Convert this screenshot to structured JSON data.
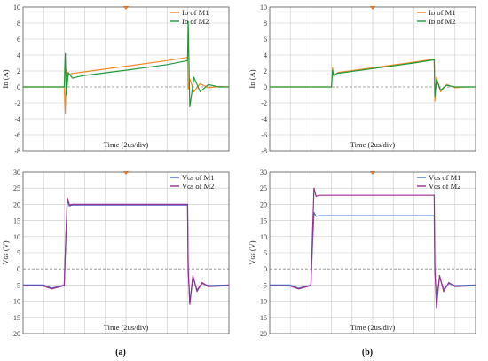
{
  "chart_data": [
    {
      "id": "a-top",
      "type": "line",
      "xlabel": "Time (2us/div)",
      "ylabel": "Iᴅ (A)",
      "ylim": [
        -8,
        10
      ],
      "yticks": [
        -8,
        -6,
        -4,
        -2,
        0,
        2,
        4,
        6,
        8,
        10
      ],
      "xlim": [
        0,
        10
      ],
      "grid": true,
      "legend_position": "top-right",
      "x": [
        0,
        1.5,
        2.0,
        2.05,
        2.1,
        2.2,
        2.4,
        2.7,
        3.0,
        5.0,
        7.0,
        7.99,
        8.02,
        8.1,
        8.3,
        8.6,
        9.0,
        9.5,
        10
      ],
      "series": [
        {
          "name": "Iᴅ of M1",
          "color": "#f08a24",
          "values": [
            0.0,
            0.0,
            0.0,
            -3.3,
            2.2,
            1.5,
            1.7,
            1.8,
            1.9,
            2.6,
            3.3,
            3.7,
            -0.3,
            1.0,
            -0.6,
            0.4,
            -0.1,
            0.05,
            0.0
          ]
        },
        {
          "name": "Iᴅ of M2",
          "color": "#1f9a3a",
          "values": [
            0.0,
            0.0,
            0.0,
            4.2,
            -1.0,
            1.8,
            1.1,
            1.3,
            1.45,
            2.1,
            2.8,
            3.3,
            8.2,
            -2.5,
            1.2,
            -0.6,
            0.3,
            0.0,
            0.0
          ]
        }
      ]
    },
    {
      "id": "b-top",
      "type": "line",
      "xlabel": "Time (2us/div)",
      "ylabel": "Iᴅ (A)",
      "ylim": [
        -8,
        10
      ],
      "yticks": [
        -8,
        -6,
        -4,
        -2,
        0,
        2,
        4,
        6,
        8,
        10
      ],
      "xlim": [
        0,
        10
      ],
      "grid": true,
      "legend_position": "top-right",
      "x": [
        0,
        1.5,
        3.0,
        3.05,
        3.1,
        3.3,
        5.0,
        7.0,
        7.99,
        8.02,
        8.1,
        8.3,
        8.6,
        9.0,
        9.5,
        10
      ],
      "series": [
        {
          "name": "Iᴅ of M1",
          "color": "#f08a24",
          "values": [
            0.0,
            0.0,
            0.0,
            2.4,
            1.4,
            1.8,
            2.4,
            3.1,
            3.5,
            -1.8,
            1.2,
            -0.6,
            0.3,
            -0.1,
            0.0,
            0.0
          ]
        },
        {
          "name": "Iᴅ of M2",
          "color": "#1f9a3a",
          "values": [
            0.0,
            0.0,
            0.0,
            2.1,
            1.5,
            1.7,
            2.3,
            3.0,
            3.4,
            -1.2,
            0.9,
            -0.4,
            0.2,
            0.0,
            0.0,
            0.0
          ]
        }
      ]
    },
    {
      "id": "a-bottom",
      "type": "line",
      "xlabel": "Time (2us/div)",
      "ylabel": "Vɢs (V)",
      "ylim": [
        -20,
        30
      ],
      "yticks": [
        -20,
        -15,
        -10,
        -5,
        0,
        5,
        10,
        15,
        20,
        25,
        30
      ],
      "xlim": [
        0,
        10
      ],
      "grid": true,
      "legend_position": "top-right",
      "x": [
        0,
        1.0,
        1.4,
        2.0,
        2.08,
        2.15,
        2.25,
        2.4,
        5.0,
        7.99,
        8.02,
        8.1,
        8.25,
        8.45,
        8.7,
        9.0,
        10
      ],
      "series": [
        {
          "name": "Vɢs of M1",
          "color": "#4a5fc8",
          "values": [
            -5.0,
            -5.0,
            -6.0,
            -5.0,
            10.0,
            21.5,
            19.5,
            19.8,
            19.8,
            19.8,
            0.0,
            -10.5,
            -2.5,
            -6.5,
            -4.5,
            -5.2,
            -5.0
          ]
        },
        {
          "name": "Vɢs of M2",
          "color": "#9b2f8f",
          "values": [
            -5.2,
            -5.3,
            -6.2,
            -5.2,
            10.5,
            22.0,
            19.8,
            20.0,
            20.0,
            20.0,
            0.0,
            -11.0,
            -2.0,
            -7.0,
            -4.2,
            -5.5,
            -5.2
          ]
        }
      ]
    },
    {
      "id": "b-bottom",
      "type": "line",
      "xlabel": "Time (2us/div)",
      "ylabel": "Vɢs (V)",
      "ylim": [
        -20,
        30
      ],
      "yticks": [
        -20,
        -15,
        -10,
        -5,
        0,
        5,
        10,
        15,
        20,
        25,
        30
      ],
      "xlim": [
        0,
        10
      ],
      "grid": true,
      "legend_position": "top-right",
      "x": [
        0,
        1.0,
        1.4,
        2.0,
        2.08,
        2.15,
        2.25,
        2.4,
        5.0,
        7.99,
        8.02,
        8.1,
        8.25,
        8.45,
        8.7,
        9.0,
        10
      ],
      "series": [
        {
          "name": "Vɢs of M1",
          "color": "#4a72c8",
          "values": [
            -5.0,
            -5.0,
            -6.0,
            -5.0,
            8.0,
            17.5,
            16.3,
            16.5,
            16.5,
            16.5,
            0.0,
            -9.5,
            -2.5,
            -6.3,
            -4.5,
            -5.2,
            -5.0
          ]
        },
        {
          "name": "Vɢs of M2",
          "color": "#9b2f8f",
          "values": [
            -5.2,
            -5.3,
            -6.2,
            -5.2,
            12.0,
            25.0,
            22.5,
            22.8,
            22.8,
            22.8,
            0.0,
            -12.0,
            -2.0,
            -7.0,
            -4.2,
            -5.5,
            -5.2
          ]
        }
      ]
    }
  ],
  "captions": {
    "left": "(a)",
    "right": "(b)"
  }
}
